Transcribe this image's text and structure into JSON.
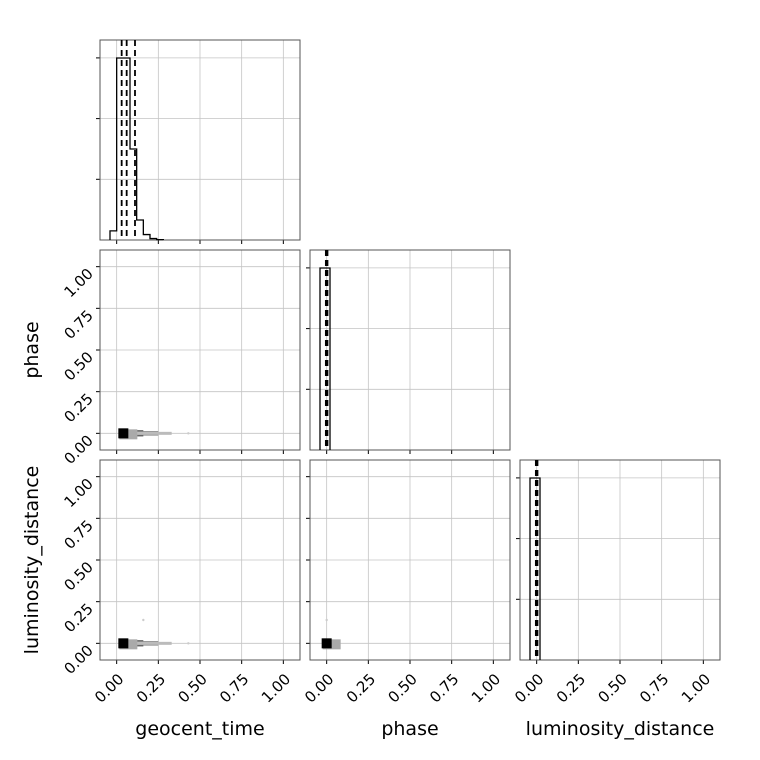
{
  "chart_data": {
    "type": "corner",
    "parameters": [
      "geocent_time",
      "phase",
      "luminosity_distance"
    ],
    "axis_labels": {
      "geocent_time": "geocent_time",
      "phase": "phase",
      "luminosity_distance": "luminosity_distance"
    },
    "ticks": [
      0.0,
      0.25,
      0.5,
      0.75,
      1.0
    ],
    "tick_labels": [
      "0.00",
      "0.25",
      "0.50",
      "0.75",
      "1.00"
    ],
    "range": [
      -0.1,
      1.1
    ],
    "grid": true,
    "histograms": {
      "geocent_time": {
        "bin_edges": [
          -0.04,
          0.0,
          0.04,
          0.08,
          0.12,
          0.16,
          0.2,
          0.24,
          0.28
        ],
        "counts": [
          0.05,
          1.0,
          1.0,
          0.5,
          0.11,
          0.03,
          0.008,
          0.002
        ],
        "quantiles": [
          0.03,
          0.06,
          0.11
        ]
      },
      "phase": {
        "bin_edges": [
          -0.04,
          0.0,
          0.02
        ],
        "counts": [
          1.0,
          1.0
        ],
        "quantiles": [
          0.0,
          0.0,
          0.0
        ]
      },
      "luminosity_distance": {
        "bin_edges": [
          -0.04,
          0.0,
          0.02
        ],
        "counts": [
          1.0,
          1.0
        ],
        "quantiles": [
          0.0,
          0.0,
          0.0
        ]
      }
    },
    "scatter": {
      "geocent_time__phase": {
        "core": [
          0.04,
          0.0
        ],
        "spread": [
          [
            0.16,
            0.0
          ],
          [
            0.25,
            0.0
          ],
          [
            0.33,
            0.0
          ]
        ],
        "outliers": [
          [
            0.43,
            0.0
          ]
        ]
      },
      "geocent_time__luminosity_distance": {
        "core": [
          0.04,
          0.0
        ],
        "spread": [
          [
            0.16,
            0.0
          ],
          [
            0.25,
            0.0
          ],
          [
            0.33,
            0.0
          ]
        ],
        "outliers": [
          [
            0.43,
            0.0
          ],
          [
            0.16,
            0.14
          ]
        ]
      },
      "phase__luminosity_distance": {
        "core": [
          0.0,
          0.0
        ],
        "spread": [],
        "outliers": [
          [
            0.0,
            0.14
          ]
        ]
      }
    }
  }
}
